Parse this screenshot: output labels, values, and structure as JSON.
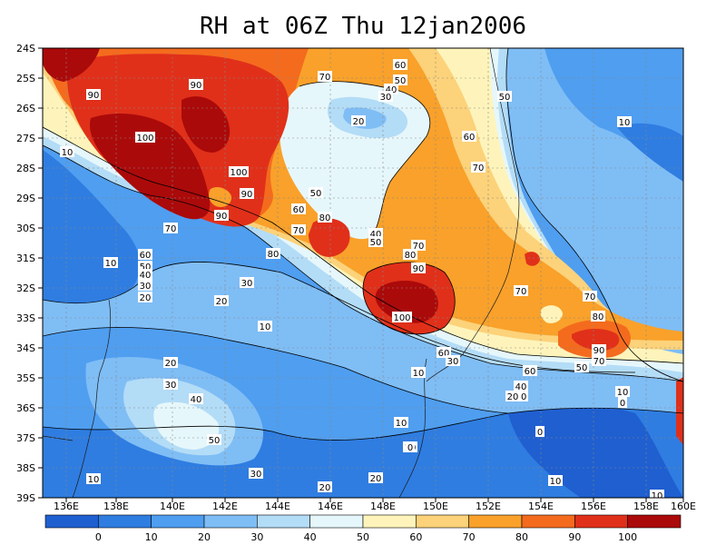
{
  "title": "RH at 06Z Thu 12jan2006",
  "lat_labels": [
    "24S",
    "25S",
    "26S",
    "27S",
    "28S",
    "29S",
    "30S",
    "31S",
    "32S",
    "33S",
    "34S",
    "35S",
    "36S",
    "37S",
    "38S",
    "39S"
  ],
  "lon_labels": [
    "136E",
    "138E",
    "140E",
    "142E",
    "144E",
    "146E",
    "148E",
    "150E",
    "152E",
    "154E",
    "156E",
    "158E",
    "160E"
  ],
  "colorbar": {
    "colors": [
      "#1f5fd0",
      "#2f7de1",
      "#4f9ef0",
      "#7fbdf5",
      "#b3dcf7",
      "#e6f7fb",
      "#fef4bb",
      "#fcd27a",
      "#f9a12a",
      "#f46b1e",
      "#e0301a",
      "#ab0a0a"
    ],
    "labels": [
      "0",
      "10",
      "20",
      "30",
      "40",
      "50",
      "60",
      "70",
      "80",
      "90",
      "100"
    ]
  },
  "contour_labels": [
    {
      "text": "90"
    },
    {
      "text": "90"
    },
    {
      "text": "100"
    },
    {
      "text": "10"
    },
    {
      "text": "100"
    },
    {
      "text": "90"
    },
    {
      "text": "90"
    },
    {
      "text": "70"
    },
    {
      "text": "60"
    },
    {
      "text": "50"
    },
    {
      "text": "40"
    },
    {
      "text": "30"
    },
    {
      "text": "20"
    },
    {
      "text": "10"
    },
    {
      "text": "20"
    },
    {
      "text": "30"
    },
    {
      "text": "10"
    },
    {
      "text": "20"
    },
    {
      "text": "30"
    },
    {
      "text": "40"
    },
    {
      "text": "50"
    },
    {
      "text": "10"
    },
    {
      "text": "30"
    },
    {
      "text": "20"
    },
    {
      "text": "20"
    },
    {
      "text": "10"
    },
    {
      "text": "10"
    },
    {
      "text": "70"
    },
    {
      "text": "60"
    },
    {
      "text": "50"
    },
    {
      "text": "40"
    },
    {
      "text": "30"
    },
    {
      "text": "20"
    },
    {
      "text": "50"
    },
    {
      "text": "60"
    },
    {
      "text": "80"
    },
    {
      "text": "70"
    },
    {
      "text": "80"
    },
    {
      "text": "40"
    },
    {
      "text": "50"
    },
    {
      "text": "70"
    },
    {
      "text": "80"
    },
    {
      "text": "90"
    },
    {
      "text": "100"
    },
    {
      "text": "60"
    },
    {
      "text": "30"
    },
    {
      "text": "10"
    },
    {
      "text": "50"
    },
    {
      "text": "60"
    },
    {
      "text": "70"
    },
    {
      "text": "70"
    },
    {
      "text": "70"
    },
    {
      "text": "80"
    },
    {
      "text": "90"
    },
    {
      "text": "70"
    },
    {
      "text": "50"
    },
    {
      "text": "60"
    },
    {
      "text": "40"
    },
    {
      "text": "30"
    },
    {
      "text": "20"
    },
    {
      "text": "10"
    },
    {
      "text": "10"
    },
    {
      "text": "0"
    },
    {
      "text": "0"
    },
    {
      "text": "10"
    },
    {
      "text": "10"
    },
    {
      "text": "0"
    },
    {
      "text": "10"
    }
  ]
}
